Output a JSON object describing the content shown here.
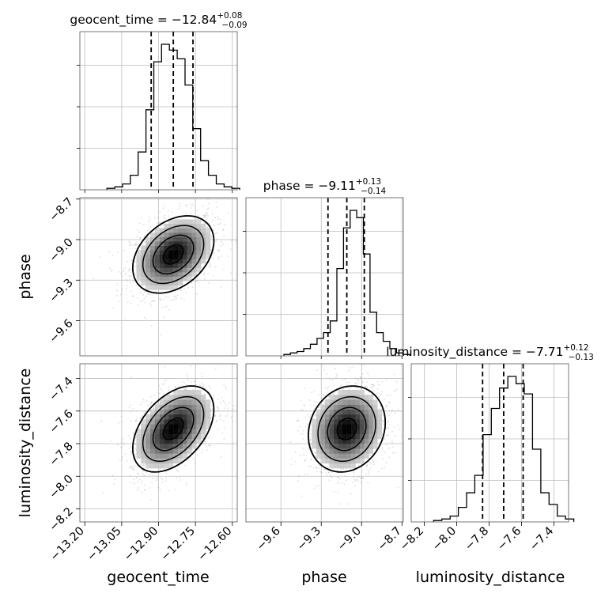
{
  "chart_data": {
    "type": "corner",
    "parameters": [
      {
        "name": "geocent_time",
        "title_value": "−12.84",
        "title_plus": "+0.08",
        "title_minus": "−0.09",
        "median": -12.84,
        "q_low": -12.93,
        "q_high": -12.76,
        "range": [
          -13.22,
          -12.58
        ],
        "ticks": [
          -13.2,
          -13.05,
          -12.9,
          -12.75,
          -12.6
        ],
        "tick_labels": [
          "−13.20",
          "−13.05",
          "−12.90",
          "−12.75",
          "−12.60"
        ],
        "hist_counts": [
          0.01,
          0.02,
          0.04,
          0.1,
          0.26,
          0.55,
          0.88,
          1.0,
          0.96,
          0.9,
          0.72,
          0.42,
          0.2,
          0.1,
          0.04,
          0.02,
          0.01
        ],
        "center": -12.84,
        "sigma": 0.075
      },
      {
        "name": "phase",
        "title_value": "−9.11",
        "title_plus": "+0.13",
        "title_minus": "−0.14",
        "median": -9.11,
        "q_low": -9.25,
        "q_high": -8.98,
        "range": [
          -9.86,
          -8.69
        ],
        "ticks": [
          -9.6,
          -9.3,
          -9.0,
          -8.7
        ],
        "tick_labels": [
          "−9.6",
          "−9.3",
          "−9.0",
          "−8.7"
        ],
        "hist_counts": [
          0.01,
          0.02,
          0.03,
          0.05,
          0.08,
          0.12,
          0.16,
          0.24,
          0.6,
          0.88,
          1.0,
          0.95,
          0.7,
          0.3,
          0.16,
          0.1,
          0.05,
          0.02,
          0.01
        ],
        "center": -9.11,
        "sigma": 0.13
      },
      {
        "name": "luminosity_distance",
        "title_value": "−7.71",
        "title_plus": "+0.12",
        "title_minus": "−0.13",
        "median": -7.71,
        "q_low": -7.84,
        "q_high": -7.59,
        "range": [
          -8.28,
          -7.31
        ],
        "ticks": [
          -8.2,
          -8.0,
          -7.8,
          -7.6,
          -7.4
        ],
        "tick_labels": [
          "−8.2",
          "−8.0",
          "−7.8",
          "−7.6",
          "−7.4"
        ],
        "hist_counts": [
          0.01,
          0.02,
          0.04,
          0.1,
          0.2,
          0.32,
          0.6,
          0.78,
          0.92,
          1.0,
          0.95,
          0.88,
          0.5,
          0.2,
          0.12,
          0.04,
          0.02
        ],
        "center": -7.71,
        "sigma": 0.12
      }
    ],
    "correlations": [
      {
        "x": "geocent_time",
        "y": "phase",
        "rho": 0.35
      },
      {
        "x": "geocent_time",
        "y": "luminosity_distance",
        "rho": 0.45
      },
      {
        "x": "phase",
        "y": "luminosity_distance",
        "rho": 0.15
      }
    ],
    "contour_levels_sigma": [
      0.5,
      1.0,
      1.5,
      2.0
    ],
    "grid": true
  }
}
